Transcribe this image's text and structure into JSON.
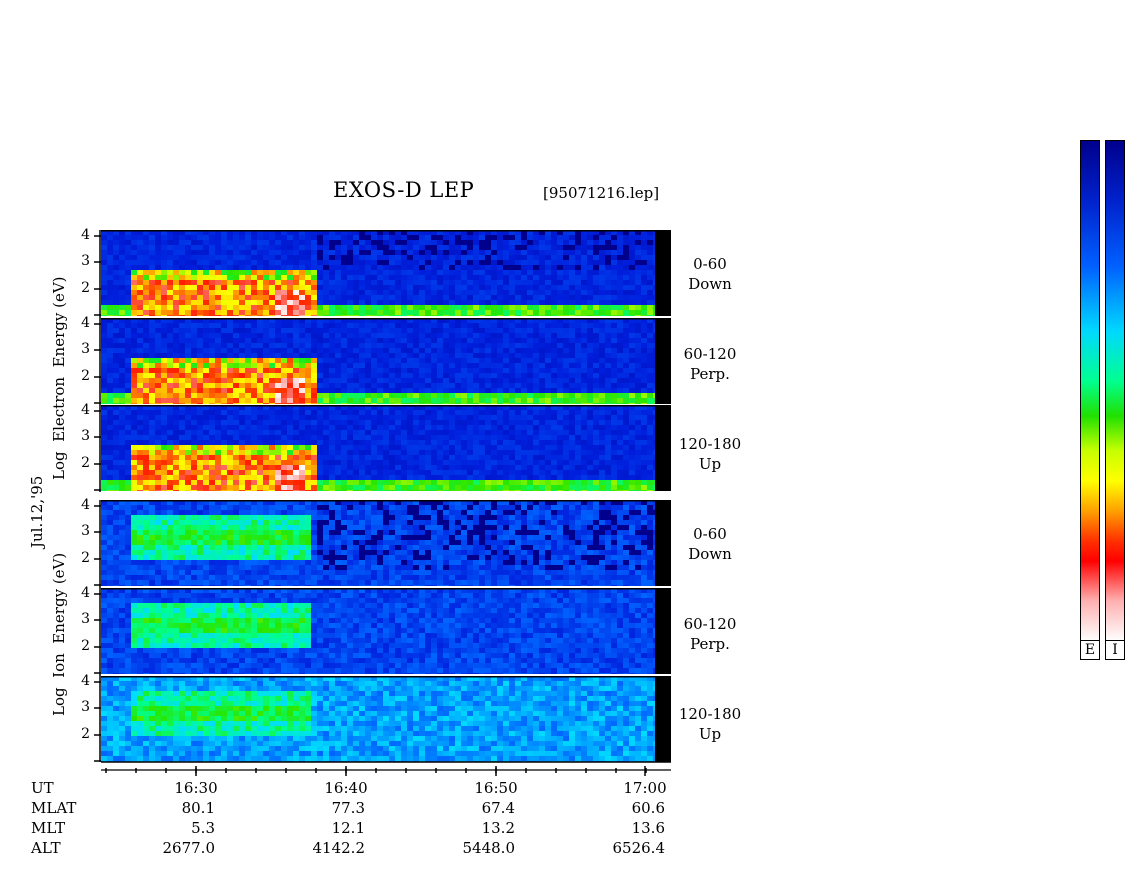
{
  "header": {
    "title": "EXOS-D LEP",
    "file": "[95071216.lep]"
  },
  "date_label": "Jul.12,'95",
  "electron": {
    "ylabel_words": [
      "Log",
      "Electron",
      "Energy",
      "(eV)"
    ],
    "panels": [
      {
        "range": "0-60",
        "dir": "Down"
      },
      {
        "range": "60-120",
        "dir": "Perp."
      },
      {
        "range": "120-180",
        "dir": "Up"
      }
    ]
  },
  "ion": {
    "ylabel_words": [
      "Log",
      "Ion",
      "Energy",
      "(eV)"
    ],
    "panels": [
      {
        "range": "0-60",
        "dir": "Down"
      },
      {
        "range": "60-120",
        "dir": "Perp."
      },
      {
        "range": "120-180",
        "dir": "Up"
      }
    ]
  },
  "yticks": [
    "4",
    "3",
    "2"
  ],
  "orbit": {
    "labels": [
      "UT",
      "MLAT",
      "MLT",
      "ALT"
    ],
    "ut": [
      "16:30",
      "16:40",
      "16:50",
      "17:00"
    ],
    "mlat": [
      "80.1",
      "77.3",
      "67.4",
      "60.6"
    ],
    "mlt": [
      "5.3",
      "12.1",
      "13.2",
      "13.6"
    ],
    "alt": [
      "2677.0",
      "4142.2",
      "5448.0",
      "6526.4"
    ]
  },
  "colorbars": [
    {
      "label": "E"
    },
    {
      "label": "I"
    }
  ],
  "colors": {
    "background_blue": "#0018d8",
    "high_flux": "#ff2000",
    "mid_flux": "#30e000"
  },
  "chart_data": {
    "type": "heatmap",
    "title": "EXOS-D LEP",
    "xlabel": "UT",
    "ylabel": "Log Energy (eV)",
    "x_ticks": [
      "16:30",
      "16:40",
      "16:50",
      "17:00"
    ],
    "ylim": [
      1,
      4.2
    ],
    "y_ticks": [
      2,
      3,
      4
    ],
    "panels": [
      {
        "species": "Electron",
        "pitch_angle": "0-60",
        "direction": "Down"
      },
      {
        "species": "Electron",
        "pitch_angle": "60-120",
        "direction": "Perp."
      },
      {
        "species": "Electron",
        "pitch_angle": "120-180",
        "direction": "Up"
      },
      {
        "species": "Ion",
        "pitch_angle": "0-60",
        "direction": "Down"
      },
      {
        "species": "Ion",
        "pitch_angle": "60-120",
        "direction": "Perp."
      },
      {
        "species": "Ion",
        "pitch_angle": "120-180",
        "direction": "Up"
      }
    ],
    "colorbar_labels": [
      "E",
      "I"
    ]
  }
}
